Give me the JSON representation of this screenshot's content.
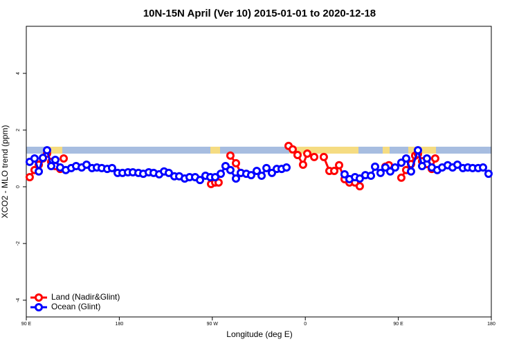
{
  "chart_data": {
    "type": "line",
    "title": "10N-15N April (Ver 10)   2015-01-01 to 2020-12-18",
    "xlabel": "Longitude (deg E)",
    "ylabel": "XCO2 - MLO trend (ppm)",
    "xlim": [
      90,
      540
    ],
    "ylim": [
      -4.59,
      5.66
    ],
    "xticks": [
      {
        "value": 90,
        "label": "90 E"
      },
      180,
      {
        "value": 270,
        "label": "90 W"
      },
      {
        "value": 360,
        "label": "0"
      },
      {
        "value": 450,
        "label": "90 E"
      },
      {
        "value": 540,
        "label": "180"
      }
    ],
    "yticks": [
      -4,
      -2,
      0,
      2,
      4
    ],
    "legend": "bottom-left",
    "series": [
      {
        "name": "Land (Nadir&Glint)",
        "color": "#ff0000",
        "x": [
          93.3,
          98.0,
          102.1,
          106.1,
          110.1,
          114.1,
          118.1,
          122.8,
          null,
          126.2,
          null,
          268.8,
          272.8,
          276.1,
          null,
          287.5,
          292.9,
          297.6,
          null,
          343.8,
          347.8,
          352.5,
          357.8,
          361.9,
          368.6,
          null,
          377.9,
          383.3,
          388.0,
          392.7,
          398.0,
          402.7,
          408.1,
          412.7,
          null,
          437.5,
          440.9,
          null,
          452.9,
          457.6,
          462.3,
          466.3,
          469.0,
          473.0,
          477.7,
          482.4,
          485.7
        ],
        "values": [
          0.34,
          0.59,
          0.78,
          1.0,
          1.17,
          0.88,
          0.73,
          0.63,
          null,
          1.0,
          null,
          0.1,
          0.15,
          0.15,
          null,
          1.1,
          0.83,
          0.49,
          null,
          1.44,
          1.32,
          1.12,
          0.78,
          1.17,
          1.05,
          null,
          1.05,
          0.56,
          0.56,
          0.76,
          0.27,
          0.15,
          0.15,
          0.02,
          null,
          0.71,
          0.76,
          null,
          0.32,
          0.59,
          0.8,
          1.1,
          1.15,
          0.9,
          0.8,
          0.63,
          1.0
        ]
      },
      {
        "name": "Ocean (Glint)",
        "color": "#0000ff",
        "x": [
          93.3,
          98.0,
          102.1,
          106.1,
          110.1,
          114.1,
          118.1,
          122.8,
          128.2,
          133.5,
          138.2,
          143.6,
          148.3,
          153.6,
          158.3,
          163.0,
          168.3,
          173.0,
          178.4,
          183.1,
          188.4,
          193.1,
          198.5,
          203.2,
          208.5,
          213.2,
          218.6,
          223.3,
          227.9,
          233.3,
          238.0,
          243.3,
          248.0,
          253.4,
          258.1,
          263.4,
          268.1,
          272.8,
          278.2,
          282.8,
          287.5,
          292.9,
          297.6,
          302.9,
          307.6,
          313.0,
          317.7,
          322.4,
          327.7,
          332.4,
          337.1,
          341.8,
          null,
          398.0,
          402.7,
          408.1,
          412.7,
          418.1,
          423.5,
          427.5,
          432.8,
          437.5,
          442.2,
          446.9,
          452.9,
          457.6,
          462.3,
          469.0,
          473.0,
          477.7,
          482.4,
          487.7,
          492.4,
          497.8,
          502.5,
          507.2,
          512.5,
          517.2,
          521.9,
          527.3,
          532.0,
          537.3
        ],
        "values": [
          0.88,
          1.0,
          0.54,
          1.02,
          1.29,
          0.73,
          0.95,
          0.68,
          0.59,
          0.66,
          0.73,
          0.68,
          0.78,
          0.66,
          0.68,
          0.66,
          0.63,
          0.66,
          0.49,
          0.49,
          0.51,
          0.51,
          0.49,
          0.46,
          0.51,
          0.49,
          0.44,
          0.54,
          0.49,
          0.37,
          0.37,
          0.29,
          0.34,
          0.34,
          0.24,
          0.39,
          0.34,
          0.34,
          0.46,
          0.73,
          0.59,
          0.29,
          0.49,
          0.46,
          0.41,
          0.56,
          0.39,
          0.66,
          0.49,
          0.63,
          0.63,
          0.68,
          null,
          0.44,
          0.27,
          0.34,
          0.29,
          0.41,
          0.39,
          0.71,
          0.49,
          0.68,
          0.54,
          0.68,
          0.85,
          1.0,
          0.54,
          1.29,
          0.73,
          1.0,
          0.68,
          0.59,
          0.68,
          0.76,
          0.68,
          0.78,
          0.66,
          0.68,
          0.66,
          0.66,
          0.68,
          0.46
        ]
      }
    ]
  }
}
